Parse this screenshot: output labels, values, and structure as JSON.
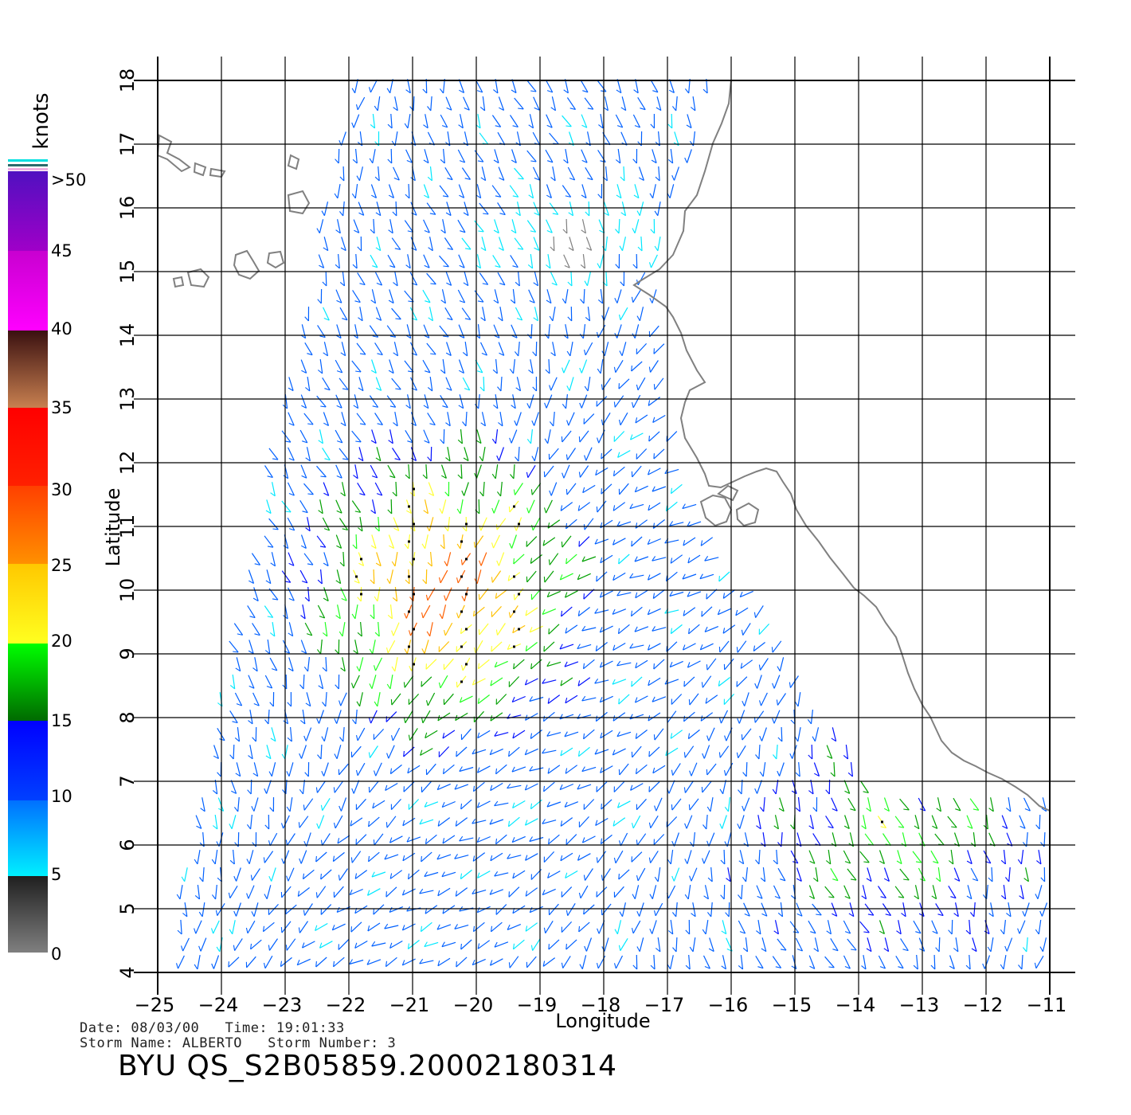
{
  "colorbar": {
    "unit_label": "knots",
    "labels": [
      ">50",
      "45",
      "40",
      "35",
      "30",
      "25",
      "20",
      "15",
      "10",
      "5",
      "0"
    ],
    "colors": {
      "0_5": [
        "#7f7f7f",
        "#1f1f1f"
      ],
      "5_10": [
        "#00f0ff",
        "#0070ff"
      ],
      "10_15": [
        "#0040ff",
        "#0000ff"
      ],
      "15_20": [
        "#006a00",
        "#00ff00"
      ],
      "20_25": [
        "#ffff20",
        "#ffc800"
      ],
      "25_30": [
        "#ff9000",
        "#ff4000"
      ],
      "30_35": [
        "#ff2000",
        "#ff0000"
      ],
      "35_40": [
        "#c88050",
        "#3a1010"
      ],
      "40_45": [
        "#ff00ff",
        "#c800d0"
      ],
      "45_50": [
        "#a000c8",
        "#5010c0"
      ]
    }
  },
  "axes": {
    "xlabel": "Longitude",
    "ylabel": "Latitude",
    "x_ticks": [
      "-25",
      "-24",
      "-23",
      "-22",
      "-21",
      "-20",
      "-19",
      "-18",
      "-17",
      "-16",
      "-15",
      "-14",
      "-13",
      "-12",
      "-11"
    ],
    "y_ticks": [
      "4",
      "5",
      "6",
      "7",
      "8",
      "9",
      "10",
      "11",
      "12",
      "13",
      "14",
      "15",
      "16",
      "17",
      "18"
    ],
    "lon_range": [
      -25,
      -11
    ],
    "lat_range": [
      4,
      18
    ]
  },
  "footer": {
    "line1": "Date: 08/03/00   Time: 19:01:33",
    "line2": "Storm Name: ALBERTO   Storm Number: 3",
    "id": "BYU QS_S2B05859.20002180314"
  }
}
